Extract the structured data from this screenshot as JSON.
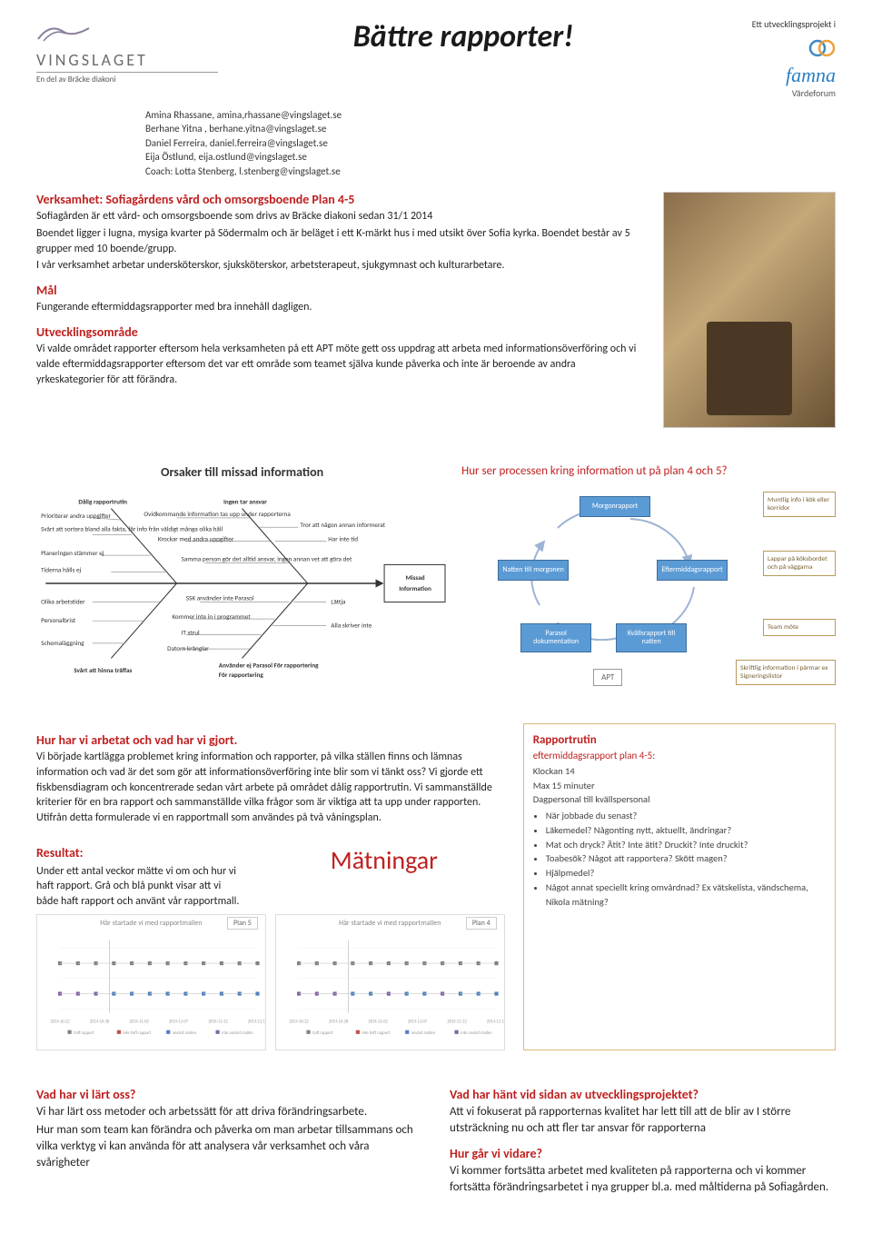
{
  "header": {
    "logo_left_brand": "VINGSLAGET",
    "logo_left_sub": "En del av Bräcke diakoni",
    "title": "Bättre rapporter!",
    "right_small": "Ett utvecklingsprojekt i",
    "right_brand": "famna",
    "right_brand_sub": "Värdeforum"
  },
  "authors": {
    "l1": "Amina Rhassane, amina,rhassane@vingslaget.se",
    "l2": "Berhane Yitna , berhane.yitna@vingslaget.se",
    "l3": "Daniel Ferreira, daniel.ferreira@vingslaget.se",
    "l4": "Eija Östlund, eija.ostlund@vingslaget.se",
    "l5": "Coach: Lotta Stenberg, l.stenberg@vingslaget.se"
  },
  "intro": {
    "h1": "Verksamhet: Sofiagårdens vård och omsorgsboende Plan 4-5",
    "p1": "Sofiagården är ett vård- och omsorgsboende som drivs av Bräcke diakoni sedan 31/1 2014",
    "p2": "Boendet ligger i lugna, mysiga kvarter på Södermalm och är beläget i ett K-märkt hus i med utsikt över Sofia kyrka. Boendet består av 5 grupper med 10 boende/grupp.",
    "p3": "I vår verksamhet arbetar undersköterskor, sjuksköterskor, arbetsterapeut, sjukgymnast och kulturarbetare.",
    "h2": "Mål",
    "p4": "Fungerande eftermiddagsrapporter med bra innehåll dagligen.",
    "h3": "Utvecklingsområde",
    "p5": "Vi valde området rapporter eftersom hela verksamheten på ett APT möte gett oss uppdrag att arbeta med informationsöverföring och vi valde eftermiddagsrapporter eftersom det var ett område som teamet själva kunde påverka och inte är beroende av andra yrkeskategorier för att förändra."
  },
  "fishbone": {
    "title": "Orsaker till missad information",
    "effect": "Missad Information",
    "categories": {
      "top1": "Dålig rapportrutin",
      "top2": "Ingen tar ansvar",
      "bot1": "Svårt att hinna träffas",
      "bot2": "Använder ej Parasol För rapportering"
    },
    "causes_top_left": [
      "Prioriterar andra uppgifter",
      "Svårt att sortera bland alla fakta, får info från väldigt många olika håll",
      "Planeringen stämmer ej",
      "Tiderna hålls ej"
    ],
    "causes_top_mid": [
      "Ovidkommande information tas upp under rapporterna",
      "Krockar med andra uppgifter",
      "Samma person gör det alltid ansvar, ingen annan vet att göra det"
    ],
    "causes_top_right": [
      "Tror att någon annan informerat",
      "Har inte tid"
    ],
    "causes_bot_left": [
      "Olika arbetstider",
      "Personalbrist",
      "Schemaläggning"
    ],
    "causes_bot_mid": [
      "SSK använder inte Parasol",
      "Kommer inte in i programmet",
      "IT strul",
      "Datorn krånglar"
    ],
    "causes_bot_right": [
      "Lättja",
      "Alla skriver inte"
    ]
  },
  "process": {
    "title": "Hur ser processen kring information ut på plan 4 och 5?",
    "nodes": {
      "top": "Morgonrapport",
      "right": "Eftermiddagsrapport",
      "bottomR": "Kvällsrapport till natten",
      "bottomL": "Parasol dokumentation",
      "left": "Natten till morgonen",
      "apt": "APT"
    },
    "side": {
      "s1": "Muntlig info i kök eller korridor",
      "s2": "Lappar på köksbordet och på väggarna",
      "s3": "Team möte",
      "s4": "Skriftlig information i pärmar ex Signeringslistor"
    }
  },
  "work": {
    "h": "Hur har vi arbetat och vad har vi gjort.",
    "p": "Vi började kartlägga problemet kring information och rapporter, på vilka ställen finns och lämnas information och vad är det som gör att informationsöverföring inte blir som vi tänkt oss? Vi gjorde ett fiskbensdiagram och koncentrerade sedan vårt arbete på området dålig rapportrutin. Vi sammanställde kriterier för en bra rapport och sammanställde vilka frågor som är viktiga att ta upp under rapporten. Utifrån detta formulerade vi en rapportmall som användes på två våningsplan."
  },
  "routine": {
    "h": "Rapportrutin",
    "sub": "eftermiddagsrapport plan 4-5:",
    "l1": "Klockan 14",
    "l2": "Max 15 minuter",
    "l3": "Dagpersonal till kvällspersonal",
    "items": [
      "När jobbade du senast?",
      "Läkemedel? Någonting nytt, aktuellt, ändringar?",
      "Mat och dryck? Ätit? Inte ätit? Druckit? Inte druckit?",
      "Toabesök? Något att rapportera? Skött magen?",
      "Hjälpmedel?",
      "Något annat speciellt kring omvårdnad? Ex vätskelista, vändschema, Nikola mätning?"
    ]
  },
  "measurements": {
    "title": "Mätningar",
    "result_h": "Resultat:",
    "result_p": "Under ett antal veckor mätte vi om och hur vi haft rapport. Grå och blå punkt visar att vi både haft rapport och använt vår rapportmall.",
    "chart1_title": "Här startade vi med rapportmallen",
    "chart1_label": "Plan 5",
    "chart2_title": "Här startade vi med rapportmallen",
    "chart2_label": "Plan 4",
    "xdates": [
      "2014-10-22",
      "2014-10-28",
      "2014-11-02",
      "2014-11-07",
      "2014-11-12",
      "2014-11-17"
    ],
    "legend": [
      "haft rapport",
      "inte haft rapport",
      "använt mallen",
      "inte använt mallen"
    ],
    "series": {
      "plan5": {
        "had": [
          1,
          1,
          1,
          1,
          1,
          1,
          1,
          1,
          1,
          1,
          1,
          1
        ],
        "used": [
          0,
          0,
          0,
          1,
          1,
          1,
          1,
          1,
          1,
          1,
          1,
          1
        ]
      },
      "plan4": {
        "had": [
          1,
          1,
          1,
          1,
          1,
          1,
          1,
          1,
          1,
          1,
          1,
          1
        ],
        "used": [
          0,
          0,
          0,
          1,
          1,
          0,
          1,
          1,
          0,
          1,
          1,
          1
        ]
      }
    },
    "colors": {
      "had_yes": "#808080",
      "had_no": "#c0504d",
      "used_yes": "#4f81bd",
      "used_no": "#8064a2"
    }
  },
  "learn": {
    "h": "Vad har vi lärt oss?",
    "p1": "Vi har lärt oss metoder och arbetssätt för att driva förändringsarbete.",
    "p2": "Hur man som team kan förändra och påverka om man arbetar tillsammans och vilka verktyg vi kan använda för att analysera vår verksamhet och våra svårigheter"
  },
  "side_events": {
    "h1": "Vad har hänt vid sidan av utvecklingsprojektet?",
    "p1": "Att vi fokuserat på rapporternas kvalitet har lett till att de blir av I större utsträckning nu och att fler tar ansvar för rapporterna",
    "h2": "Hur går vi vidare?",
    "p2": "Vi kommer fortsätta arbetet med kvaliteten på rapporterna och vi kommer fortsätta förändringsarbetet i nya grupper bl.a. med måltiderna på Sofiagården."
  }
}
